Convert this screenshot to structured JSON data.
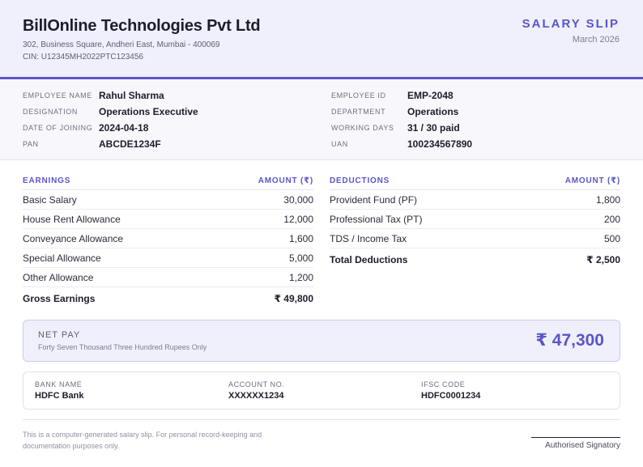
{
  "company": {
    "name": "BillOnline Technologies Pvt Ltd",
    "address": "302, Business Square, Andheri East, Mumbai - 400069",
    "cin": "CIN: U12345MH2022PTC123456"
  },
  "slip": {
    "title": "SALARY SLIP",
    "period": "March 2026"
  },
  "employee": {
    "left": [
      {
        "label": "EMPLOYEE NAME",
        "value": "Rahul Sharma"
      },
      {
        "label": "DESIGNATION",
        "value": "Operations Executive"
      },
      {
        "label": "DATE OF JOINING",
        "value": "2024-04-18"
      },
      {
        "label": "PAN",
        "value": "ABCDE1234F"
      }
    ],
    "right": [
      {
        "label": "EMPLOYEE ID",
        "value": "EMP-2048"
      },
      {
        "label": "DEPARTMENT",
        "value": "Operations"
      },
      {
        "label": "WORKING DAYS",
        "value": "31 / 30 paid"
      },
      {
        "label": "UAN",
        "value": "100234567890"
      }
    ]
  },
  "earnings": {
    "heading": "EARNINGS",
    "amount_heading": "AMOUNT (₹)",
    "items": [
      {
        "label": "Basic Salary",
        "amount": "30,000"
      },
      {
        "label": "House Rent Allowance",
        "amount": "12,000"
      },
      {
        "label": "Conveyance Allowance",
        "amount": "1,600"
      },
      {
        "label": "Special Allowance",
        "amount": "5,000"
      },
      {
        "label": "Other Allowance",
        "amount": "1,200"
      }
    ],
    "total_label": "Gross Earnings",
    "total_amount": "₹ 49,800"
  },
  "deductions": {
    "heading": "DEDUCTIONS",
    "amount_heading": "AMOUNT (₹)",
    "items": [
      {
        "label": "Provident Fund (PF)",
        "amount": "1,800"
      },
      {
        "label": "Professional Tax (PT)",
        "amount": "200"
      },
      {
        "label": "TDS / Income Tax",
        "amount": "500"
      }
    ],
    "total_label": "Total Deductions",
    "total_amount": "₹ 2,500"
  },
  "net_pay": {
    "label": "NET PAY",
    "words": "Forty Seven Thousand Three Hundred Rupees Only",
    "amount": "₹ 47,300"
  },
  "bank": [
    {
      "label": "BANK NAME",
      "value": "HDFC Bank"
    },
    {
      "label": "ACCOUNT NO.",
      "value": "XXXXXX1234"
    },
    {
      "label": "IFSC CODE",
      "value": "HDFC0001234"
    }
  ],
  "footer": {
    "note": "This is a computer-generated salary slip. For personal record-keeping and documentation purposes only.",
    "signatory": "Authorised Signatory"
  }
}
